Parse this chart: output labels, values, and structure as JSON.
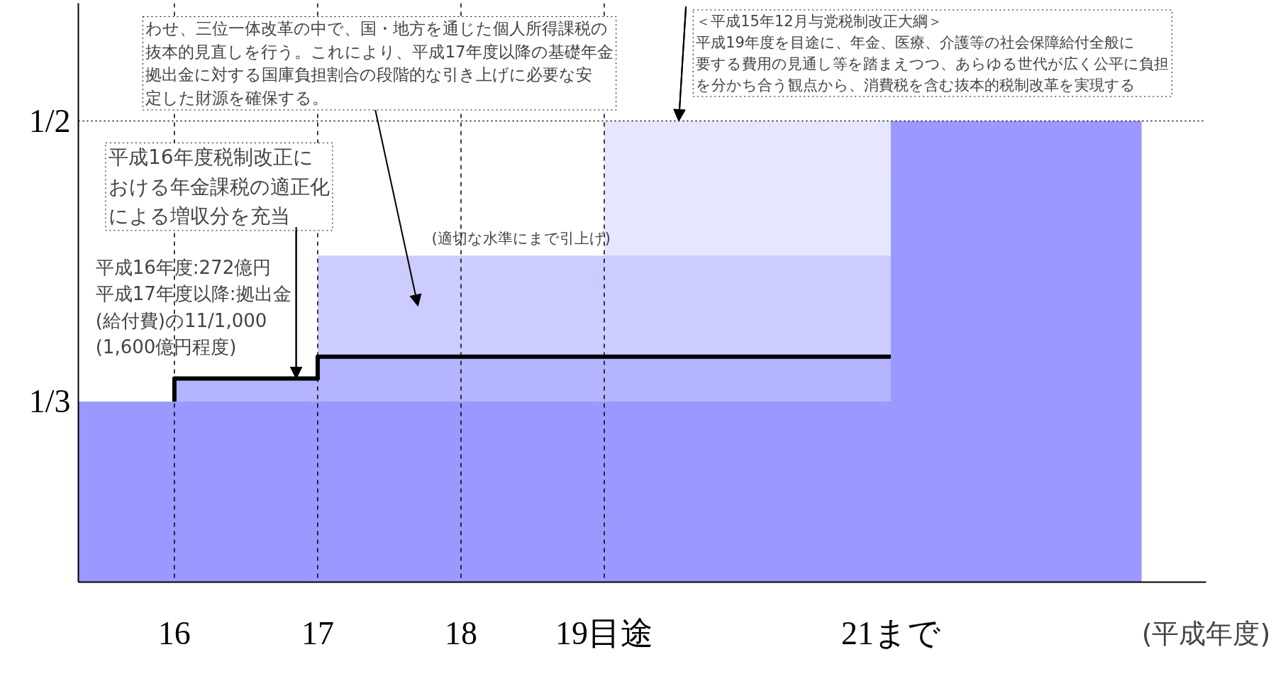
{
  "chart_data": {
    "type": "area",
    "xlabel": "(平成年度)",
    "series": [
      {
        "color": "#e6e6ff",
        "x": [
          19,
          21
        ],
        "values": [
          0.5,
          0.5
        ]
      },
      {
        "color": "#ccccff",
        "x": [
          17,
          21
        ],
        "values": [
          0.42,
          0.42
        ]
      },
      {
        "color": "#b3b3ff",
        "x": [
          16,
          17,
          21
        ],
        "values": [
          0.347,
          0.36,
          0.36
        ]
      },
      {
        "color": "#9999ff",
        "x": [
          15.33,
          21,
          22.75
        ],
        "values": [
          0.3333,
          0.5,
          0.5
        ]
      },
      {
        "type": "step",
        "color": "#000000",
        "x": [
          16,
          16,
          17,
          21
        ],
        "values": [
          0.3333,
          0.347,
          0.36,
          0.36
        ]
      }
    ],
    "xlim": [
      15.33,
      23.2
    ],
    "ylim": [
      0.226,
      0.57
    ],
    "xticks": [
      {
        "value": 16,
        "label": "16"
      },
      {
        "value": 17,
        "label": "17"
      },
      {
        "value": 18,
        "label": "18"
      },
      {
        "value": 19,
        "label": "19目途"
      },
      {
        "value": 21,
        "label": "21まで"
      }
    ],
    "yticks": [
      {
        "value": 0.3333,
        "label": "1/3"
      },
      {
        "value": 0.5,
        "label": "1/2"
      }
    ],
    "ref_lines": [
      {
        "axis": "x",
        "value": 16,
        "line_style": "dashed",
        "color": "#000000"
      },
      {
        "axis": "x",
        "value": 17,
        "line_style": "dashed",
        "color": "#000000"
      },
      {
        "axis": "x",
        "value": 18,
        "line_style": "dashed",
        "color": "#000000"
      },
      {
        "axis": "x",
        "value": 19,
        "line_style": "dashed",
        "color": "#000000"
      },
      {
        "axis": "y",
        "value": 0.5,
        "line_style": "dotted",
        "color": "#000000"
      }
    ],
    "annotations": [
      "わせ、三位一体改革の中で、国・地方を通じた個人所得課税の抜本的見直しを行う。これにより、平成17年度以降の基礎年金拠出金に対する国庫負担割合の段階的な引き上げに必要な安定した財源を確保する。",
      {
        "text": "＜平成15年12月与党税制改正大綱＞平成19年度を目途に、年金、医療、介護等の社会保障給付全般に要する費用の見通し等を踏まえつつ、あらゆる世代が広く公平に負担を分かち合う観点から、消費税を含む抜本的税制改革を実現する",
        "x": 19.52,
        "y": 0.5
      },
      {
        "text": "平成16年度税制改正における年金課税の適正化による増収分を充当",
        "x": 16.85,
        "y": 0.347
      },
      "平成16年度:272億円平成17年度以降:拠出金(給付費)の11/1,000(1,600億円程度)",
      "(適切な水準にまで引上げ)"
    ],
    "grid": false
  }
}
